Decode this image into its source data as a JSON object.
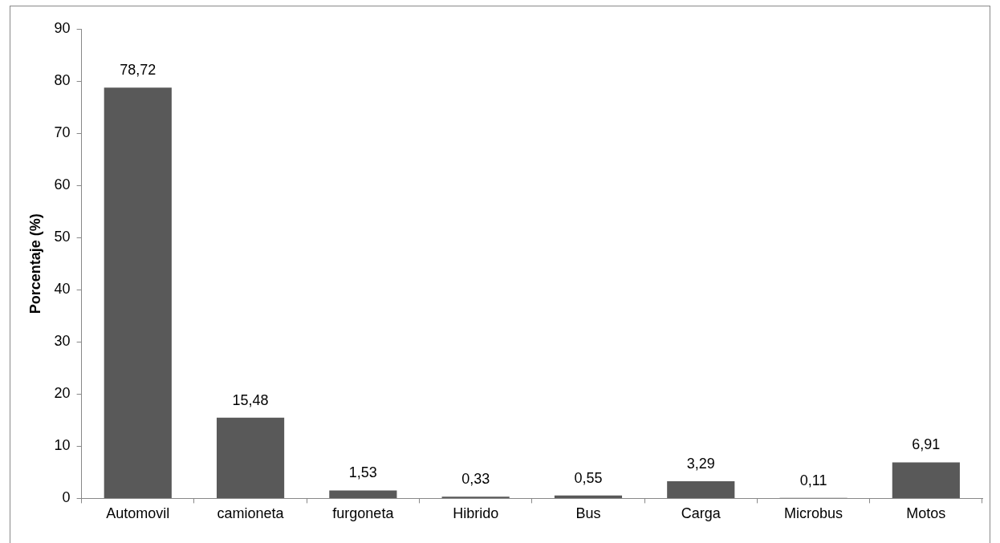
{
  "chart_data": {
    "type": "bar",
    "ylabel": "Porcentaje (%)",
    "categories": [
      "Automovil",
      "camioneta",
      "furgoneta",
      "Hibrido",
      "Bus",
      "Carga",
      "Microbus",
      "Motos"
    ],
    "values": [
      78.72,
      15.48,
      1.53,
      0.33,
      0.55,
      3.29,
      0.11,
      6.91
    ],
    "value_labels": [
      "78,72",
      "15,48",
      "1,53",
      "0,33",
      "0,55",
      "3,29",
      "0,11",
      "6,91"
    ],
    "color": "#595959",
    "ylim": [
      0,
      90
    ],
    "yticks": [
      0,
      10,
      20,
      30,
      40,
      50,
      60,
      70,
      80,
      90
    ],
    "grid": false,
    "legend": false
  }
}
